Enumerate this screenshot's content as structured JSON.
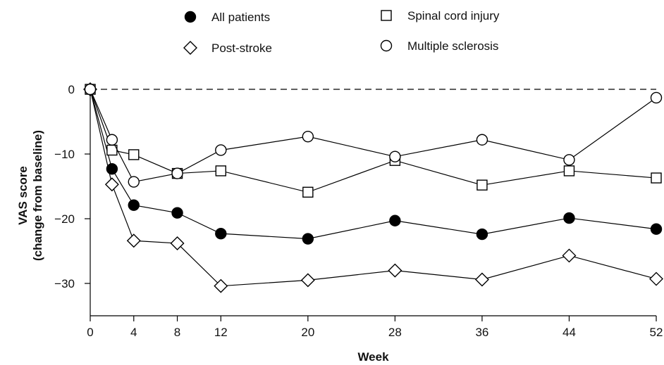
{
  "chart_data": {
    "type": "line",
    "xlabel": "Week",
    "ylabel_lines": [
      "VAS score",
      "(change from baseline)"
    ],
    "x_ticks": [
      0,
      4,
      8,
      12,
      20,
      28,
      36,
      44,
      52
    ],
    "y_ticks": [
      0,
      -10,
      -20,
      -30
    ],
    "xlim": [
      0,
      52
    ],
    "ylim": [
      -35,
      0
    ],
    "reference_line": {
      "y": 0,
      "style": "dashed"
    },
    "grid": false,
    "legend": [
      {
        "name": "All patients",
        "marker": "filled-circle"
      },
      {
        "name": "Spinal cord injury",
        "marker": "open-square"
      },
      {
        "name": "Post-stroke",
        "marker": "open-diamond"
      },
      {
        "name": "Multiple sclerosis",
        "marker": "open-circle"
      }
    ],
    "series": [
      {
        "name": "All patients",
        "marker": "filled-circle",
        "x": [
          0,
          2,
          4,
          8,
          12,
          20,
          28,
          36,
          44,
          52
        ],
        "values": [
          0,
          -12.3,
          -17.9,
          -19.1,
          -22.3,
          -23.1,
          -20.3,
          -22.4,
          -19.9,
          -21.6
        ]
      },
      {
        "name": "Spinal cord injury",
        "marker": "open-square",
        "x": [
          0,
          2,
          4,
          8,
          12,
          20,
          28,
          36,
          44,
          52
        ],
        "values": [
          0,
          -9.4,
          -10.1,
          -13.0,
          -12.6,
          -15.9,
          -11.0,
          -14.8,
          -12.6,
          -13.7
        ]
      },
      {
        "name": "Post-stroke",
        "marker": "open-diamond",
        "x": [
          0,
          2,
          4,
          8,
          12,
          20,
          28,
          36,
          44,
          52
        ],
        "values": [
          0,
          -14.7,
          -23.4,
          -23.8,
          -30.4,
          -29.5,
          -28.0,
          -29.4,
          -25.7,
          -29.3
        ]
      },
      {
        "name": "Multiple sclerosis",
        "marker": "open-circle",
        "x": [
          0,
          2,
          4,
          8,
          12,
          20,
          28,
          36,
          44,
          52
        ],
        "values": [
          0,
          -7.8,
          -14.3,
          -13.0,
          -9.4,
          -7.3,
          -10.4,
          -7.8,
          -10.9,
          -1.3
        ]
      }
    ]
  }
}
